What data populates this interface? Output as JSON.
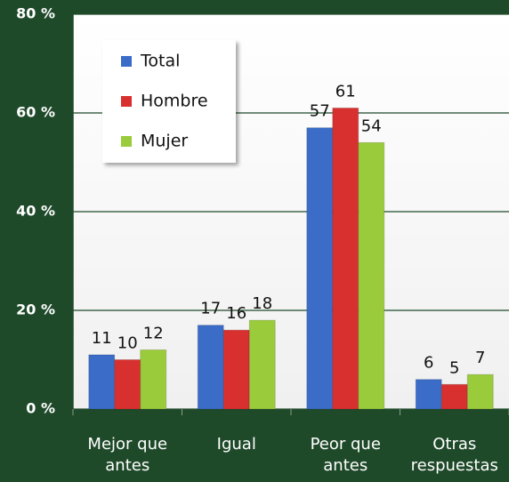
{
  "chart_data": {
    "type": "bar",
    "categories": [
      "Mejor  que\nantes",
      "Igual",
      "Peor que\nantes",
      "Otras\nrespuestas"
    ],
    "series": [
      {
        "name": "Total",
        "color": "#3a6cc8",
        "values": [
          11,
          17,
          57,
          6
        ]
      },
      {
        "name": "Hombre",
        "color": "#d8302f",
        "values": [
          10,
          16,
          61,
          5
        ]
      },
      {
        "name": "Mujer",
        "color": "#9acb3a",
        "values": [
          12,
          18,
          54,
          7
        ]
      }
    ],
    "ylim": [
      0,
      80
    ],
    "yticks": [
      {
        "value": 0,
        "label": "0 %"
      },
      {
        "value": 20,
        "label": "20 %"
      },
      {
        "value": 40,
        "label": "40 %"
      },
      {
        "value": 60,
        "label": "60 %"
      },
      {
        "value": 80,
        "label": "80 %"
      }
    ],
    "grid": true,
    "legend": "upper left"
  }
}
